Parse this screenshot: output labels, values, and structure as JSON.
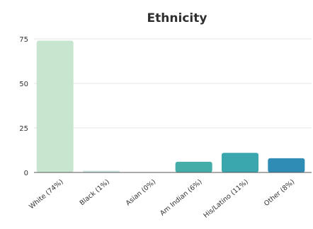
{
  "chart_data": {
    "type": "bar",
    "title": "Ethnicity",
    "xlabel": "",
    "ylabel": "",
    "categories": [
      "White (74%)",
      "Black (1%)",
      "Asian (0%)",
      "Am Indian (6%)",
      "His/Latino (11%)",
      "Other (8%)"
    ],
    "values": [
      74,
      1,
      0,
      6,
      11,
      8
    ],
    "ylim": [
      0,
      75
    ],
    "yticks": [
      "0",
      "25",
      "50",
      "75"
    ],
    "grid": true,
    "legend": "none",
    "colors": [
      "#c8e6cf",
      "#cfe9e5",
      "#c9e8e6",
      "#45ada7",
      "#3aa6ad",
      "#2f8cb4"
    ]
  }
}
